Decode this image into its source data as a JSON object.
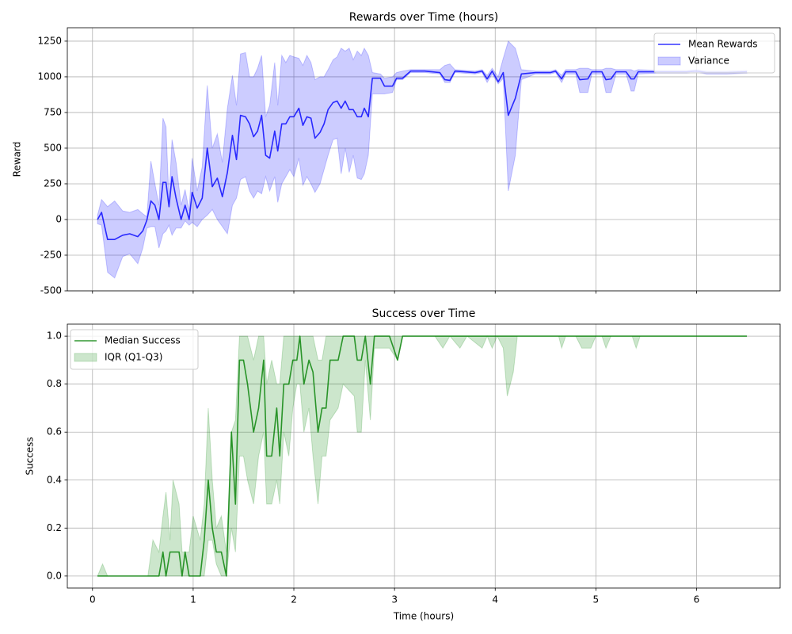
{
  "chart_data": [
    {
      "type": "line",
      "title": "Rewards over Time (hours)",
      "y_label": "Reward",
      "xlim": [
        -0.25,
        6.83
      ],
      "ylim": [
        -500,
        1344
      ],
      "xticks": [
        0,
        1,
        2,
        3,
        4,
        5,
        6
      ],
      "show_xtick_labels": false,
      "yticks": [
        -500,
        -250,
        0,
        250,
        500,
        750,
        1000,
        1250
      ],
      "grid": true,
      "legend": "upper right",
      "x": [
        0.05,
        0.09,
        0.15,
        0.22,
        0.3,
        0.37,
        0.45,
        0.5,
        0.54,
        0.58,
        0.62,
        0.66,
        0.7,
        0.73,
        0.76,
        0.79,
        0.83,
        0.88,
        0.92,
        0.96,
        0.99,
        1.04,
        1.09,
        1.14,
        1.19,
        1.24,
        1.29,
        1.34,
        1.39,
        1.43,
        1.47,
        1.52,
        1.56,
        1.6,
        1.64,
        1.68,
        1.72,
        1.76,
        1.81,
        1.84,
        1.88,
        1.92,
        1.96,
        2.0,
        2.05,
        2.09,
        2.13,
        2.17,
        2.21,
        2.26,
        2.3,
        2.34,
        2.39,
        2.43,
        2.47,
        2.51,
        2.55,
        2.59,
        2.63,
        2.67,
        2.7,
        2.74,
        2.78,
        2.86,
        2.9,
        2.98,
        3.02,
        3.08,
        3.16,
        3.3,
        3.45,
        3.5,
        3.55,
        3.6,
        3.8,
        3.87,
        3.92,
        3.97,
        4.03,
        4.08,
        4.13,
        4.2,
        4.26,
        4.4,
        4.55,
        4.6,
        4.66,
        4.7,
        4.8,
        4.84,
        4.92,
        4.96,
        5.06,
        5.1,
        5.15,
        5.2,
        5.3,
        5.35,
        5.38,
        5.42,
        5.6,
        5.9,
        6.0,
        6.1,
        6.3,
        6.5
      ],
      "series": [
        {
          "name": "Mean Rewards",
          "type": "line",
          "color": "#0000ff",
          "values": [
            0,
            50,
            -140,
            -140,
            -110,
            -100,
            -120,
            -80,
            -5,
            130,
            100,
            0,
            260,
            260,
            90,
            300,
            150,
            0,
            100,
            0,
            190,
            80,
            150,
            500,
            230,
            290,
            160,
            330,
            590,
            420,
            730,
            720,
            670,
            580,
            620,
            730,
            450,
            430,
            620,
            480,
            670,
            670,
            720,
            720,
            780,
            660,
            720,
            710,
            570,
            610,
            670,
            770,
            820,
            830,
            780,
            830,
            770,
            770,
            720,
            720,
            780,
            720,
            990,
            990,
            935,
            935,
            990,
            990,
            1040,
            1040,
            1030,
            980,
            975,
            1040,
            1030,
            1040,
            985,
            1040,
            965,
            1030,
            730,
            850,
            1020,
            1030,
            1030,
            1040,
            985,
            1035,
            1035,
            980,
            985,
            1035,
            1035,
            980,
            985,
            1035,
            1035,
            985,
            985,
            1035,
            1035,
            1035,
            1040,
            1030,
            1030,
            1035
          ]
        },
        {
          "name": "Variance",
          "type": "band",
          "color": "#0000ff",
          "lower": [
            -30,
            -40,
            -370,
            -410,
            -260,
            -240,
            -310,
            -200,
            -60,
            -50,
            -50,
            -200,
            -100,
            -80,
            -40,
            -110,
            -60,
            -60,
            -10,
            -40,
            -20,
            -50,
            0,
            30,
            70,
            0,
            -50,
            -100,
            100,
            150,
            280,
            300,
            200,
            150,
            200,
            180,
            300,
            200,
            300,
            120,
            250,
            300,
            350,
            300,
            430,
            240,
            300,
            250,
            190,
            250,
            350,
            450,
            560,
            570,
            320,
            500,
            330,
            450,
            290,
            280,
            320,
            450,
            880,
            880,
            880,
            890,
            980,
            980,
            1030,
            1030,
            1020,
            960,
            960,
            1030,
            1020,
            1030,
            960,
            1020,
            950,
            990,
            200,
            450,
            980,
            1020,
            1020,
            1030,
            960,
            1020,
            1020,
            890,
            890,
            1020,
            1020,
            890,
            890,
            1020,
            1020,
            900,
            900,
            1020,
            1025,
            1025,
            1030,
            1020,
            1020,
            1025
          ],
          "upper": [
            30,
            140,
            90,
            130,
            60,
            50,
            70,
            40,
            20,
            410,
            250,
            100,
            710,
            650,
            130,
            560,
            400,
            100,
            210,
            60,
            430,
            200,
            370,
            940,
            500,
            600,
            400,
            780,
            1010,
            800,
            1160,
            1170,
            1000,
            1000,
            1060,
            1150,
            720,
            800,
            1100,
            800,
            1150,
            1100,
            1150,
            1140,
            1130,
            1080,
            1150,
            1100,
            980,
            1000,
            1000,
            1050,
            1120,
            1140,
            1200,
            1180,
            1200,
            1120,
            1180,
            1150,
            1200,
            1150,
            1030,
            1020,
            990,
            1000,
            1030,
            1040,
            1050,
            1050,
            1050,
            1080,
            1090,
            1050,
            1040,
            1050,
            1010,
            1060,
            1000,
            1130,
            1250,
            1200,
            1050,
            1040,
            1040,
            1050,
            1010,
            1050,
            1050,
            1060,
            1060,
            1050,
            1050,
            1060,
            1060,
            1050,
            1050,
            1050,
            1040,
            1050,
            1045,
            1045,
            1050,
            1040,
            1040,
            1045
          ]
        }
      ]
    },
    {
      "type": "line",
      "title": "Success over Time",
      "y_label": "Success",
      "x_label": "Time (hours)",
      "xlim": [
        -0.25,
        6.83
      ],
      "ylim": [
        -0.05,
        1.05
      ],
      "xticks": [
        0,
        1,
        2,
        3,
        4,
        5,
        6
      ],
      "show_xtick_labels": true,
      "yticks": [
        {
          "value": 0,
          "label": "0.0"
        },
        0.2,
        0.4,
        0.6,
        0.8,
        {
          "value": 1,
          "label": "1.0"
        }
      ],
      "grid": true,
      "legend": "upper left",
      "x": [
        0.05,
        0.1,
        0.15,
        0.55,
        0.6,
        0.66,
        0.7,
        0.73,
        0.77,
        0.8,
        0.86,
        0.89,
        0.92,
        0.96,
        1.0,
        1.07,
        1.11,
        1.15,
        1.19,
        1.23,
        1.28,
        1.33,
        1.38,
        1.42,
        1.46,
        1.5,
        1.54,
        1.6,
        1.65,
        1.7,
        1.73,
        1.78,
        1.83,
        1.86,
        1.9,
        1.95,
        1.99,
        2.03,
        2.06,
        2.1,
        2.15,
        2.19,
        2.24,
        2.28,
        2.32,
        2.36,
        2.44,
        2.49,
        2.6,
        2.63,
        2.67,
        2.71,
        2.76,
        2.8,
        2.95,
        3.03,
        3.08,
        3.4,
        3.48,
        3.55,
        3.65,
        3.72,
        3.87,
        3.92,
        3.97,
        4.02,
        4.08,
        4.12,
        4.18,
        4.22,
        4.63,
        4.66,
        4.7,
        4.8,
        4.86,
        4.95,
        5.0,
        5.06,
        5.1,
        5.15,
        5.36,
        5.4,
        5.44,
        6.5
      ],
      "series": [
        {
          "name": "Median Success",
          "type": "line",
          "color": "#008000",
          "values": [
            0,
            0,
            0,
            0,
            0,
            0,
            0.1,
            0,
            0.1,
            0.1,
            0.1,
            0,
            0.1,
            0,
            0,
            0,
            0.15,
            0.4,
            0.2,
            0.1,
            0.1,
            0,
            0.6,
            0.3,
            0.9,
            0.9,
            0.8,
            0.6,
            0.7,
            0.9,
            0.5,
            0.5,
            0.7,
            0.5,
            0.8,
            0.8,
            0.9,
            0.9,
            1,
            0.8,
            0.9,
            0.85,
            0.6,
            0.7,
            0.7,
            0.9,
            0.9,
            1,
            1,
            0.9,
            0.9,
            1,
            0.8,
            1,
            1,
            0.9,
            1,
            1,
            1,
            1,
            1,
            1,
            1,
            1,
            1,
            1,
            1,
            1,
            1,
            1,
            1,
            1,
            1,
            1,
            1,
            1,
            1,
            1,
            1,
            1,
            1,
            1,
            1,
            1
          ]
        },
        {
          "name": "IQR (Q1-Q3)",
          "type": "band",
          "color": "#008000",
          "lower": [
            0,
            0,
            0,
            0,
            0,
            0,
            0,
            0,
            0,
            0,
            0,
            0,
            0,
            0,
            0,
            0,
            0,
            0.15,
            0.15,
            0.05,
            0,
            0,
            0.2,
            0.1,
            0.5,
            0.5,
            0.4,
            0.3,
            0.5,
            0.6,
            0.3,
            0.3,
            0.4,
            0.3,
            0.6,
            0.5,
            0.7,
            0.8,
            0.8,
            0.6,
            0.7,
            0.5,
            0.3,
            0.5,
            0.5,
            0.65,
            0.7,
            0.8,
            0.75,
            0.6,
            0.6,
            0.9,
            0.65,
            0.95,
            0.95,
            0.9,
            1,
            1,
            0.95,
            1,
            0.95,
            1,
            0.95,
            1,
            0.95,
            1,
            0.95,
            0.75,
            0.85,
            1,
            1,
            0.95,
            1,
            1,
            0.95,
            0.95,
            1,
            1,
            0.95,
            1,
            1,
            0.95,
            1,
            1
          ],
          "upper": [
            0,
            0.05,
            0,
            0,
            0.15,
            0.1,
            0.25,
            0.35,
            0.15,
            0.4,
            0.3,
            0.1,
            0.1,
            0.1,
            0.25,
            0.15,
            0.3,
            0.7,
            0.4,
            0.2,
            0.25,
            0.1,
            0.6,
            0.65,
            1,
            1,
            1,
            0.9,
            1,
            1,
            0.8,
            0.9,
            0.8,
            0.8,
            1,
            1,
            1,
            1,
            1,
            1,
            1,
            1,
            0.9,
            0.9,
            1,
            1,
            1,
            1,
            1,
            1,
            1,
            1,
            1,
            1,
            1,
            1,
            1,
            1,
            1,
            1,
            1,
            1,
            1,
            1,
            1,
            1,
            1,
            1,
            1,
            1,
            1,
            1,
            1,
            1,
            1,
            1,
            1,
            1,
            1,
            1,
            1,
            1,
            1,
            1
          ]
        }
      ]
    }
  ]
}
